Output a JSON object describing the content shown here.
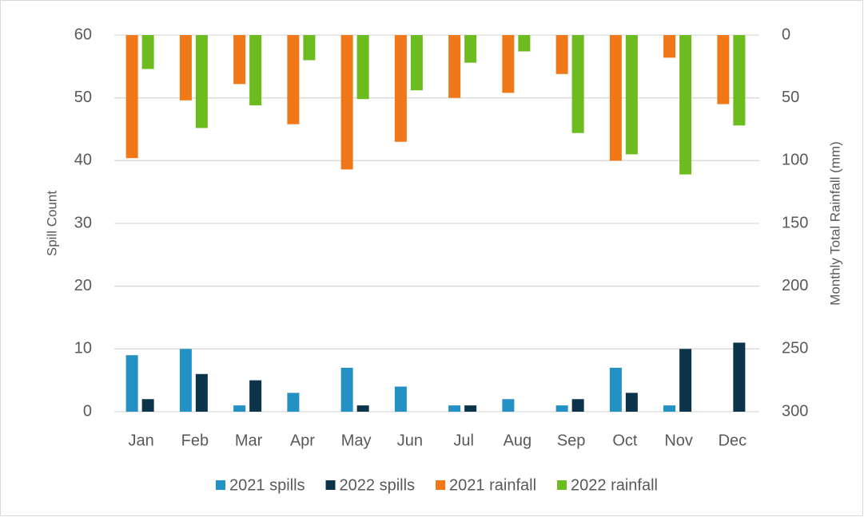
{
  "chart_data": {
    "type": "bar",
    "categories": [
      "Jan",
      "Feb",
      "Mar",
      "Apr",
      "May",
      "Jun",
      "Jul",
      "Aug",
      "Sep",
      "Oct",
      "Nov",
      "Dec"
    ],
    "y_label": "Spill Count",
    "y2_label": "Monthly Total Rainfall (mm)",
    "ylim": [
      0,
      60
    ],
    "yticks": [
      0,
      10,
      20,
      30,
      40,
      50,
      60
    ],
    "y2lim": [
      300,
      0
    ],
    "y2ticks": [
      0,
      50,
      100,
      150,
      200,
      250,
      300
    ],
    "grid": true,
    "legend": "bottom",
    "series": [
      {
        "name": "2021 spills",
        "color": "#2491c4",
        "values": [
          9,
          10,
          1,
          3,
          7,
          4,
          1,
          2,
          1,
          7,
          1,
          0
        ]
      },
      {
        "name": "2022 spills",
        "color": "#0b3349",
        "values": [
          2,
          6,
          5,
          0,
          1,
          0,
          1,
          0,
          2,
          3,
          10,
          11
        ]
      },
      {
        "name": "2021 rainfall",
        "color": "#f07818",
        "axis": "y2",
        "values": [
          98,
          52,
          39,
          71,
          107,
          85,
          50,
          46,
          31,
          100,
          18,
          55
        ]
      },
      {
        "name": "2022 rainfall",
        "color": "#6cbb1f",
        "axis": "y2",
        "values": [
          27,
          74,
          56,
          20,
          51,
          44,
          22,
          13,
          78,
          95,
          111,
          72
        ]
      }
    ]
  }
}
